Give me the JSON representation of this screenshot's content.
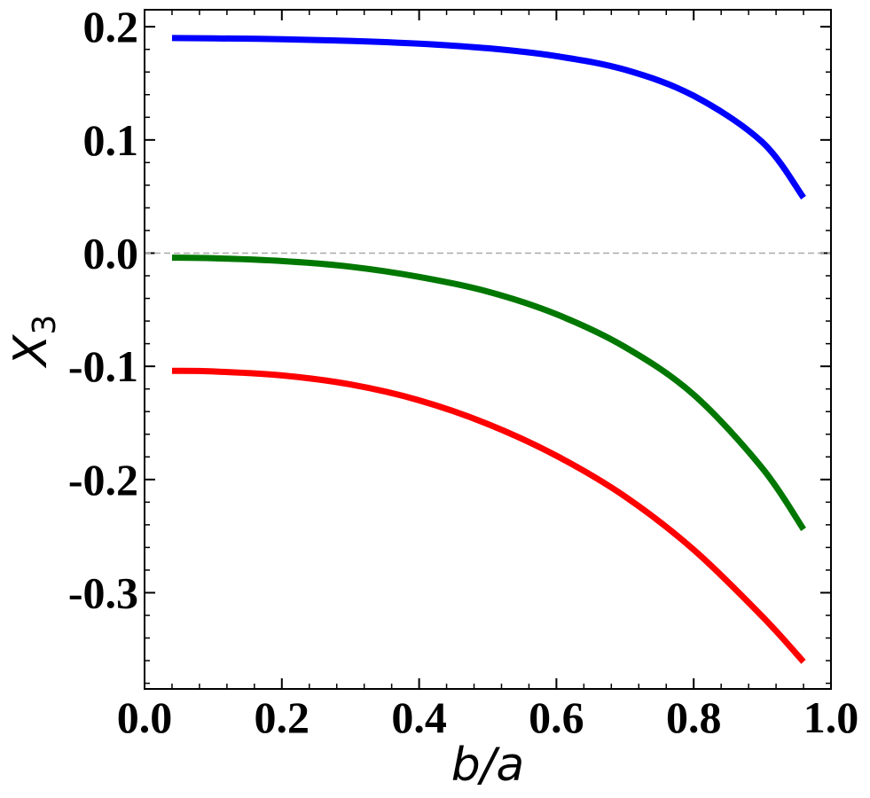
{
  "chart_data": {
    "type": "line",
    "xlabel": "b/a",
    "ylabel": "X",
    "ylabel_subscript": "3",
    "xlim": [
      0.0,
      1.0
    ],
    "ylim": [
      -0.385,
      0.215
    ],
    "xticks": [
      0.0,
      0.2,
      0.4,
      0.6,
      0.8,
      1.0
    ],
    "xtick_labels": [
      "0.0",
      "0.2",
      "0.4",
      "0.6",
      "0.8",
      "1.0"
    ],
    "yticks": [
      0.2,
      0.1,
      0.0,
      -0.1,
      -0.2,
      -0.3
    ],
    "ytick_labels": [
      "0.2",
      "0.1",
      "0.0",
      "-0.1",
      "-0.2",
      "-0.3"
    ],
    "reference_line": {
      "y": 0.0,
      "style": "dashed",
      "color": "#aaaaaa"
    },
    "grid": false,
    "legend": "none",
    "x": [
      0.04,
      0.1,
      0.2,
      0.3,
      0.4,
      0.5,
      0.6,
      0.7,
      0.8,
      0.9,
      0.96
    ],
    "series": [
      {
        "color": "#0000ff",
        "values": [
          0.19,
          0.1897,
          0.189,
          0.1875,
          0.185,
          0.181,
          0.174,
          0.162,
          0.139,
          0.098,
          0.049
        ]
      },
      {
        "color": "#007700",
        "values": [
          -0.004,
          -0.0045,
          -0.007,
          -0.012,
          -0.021,
          -0.034,
          -0.054,
          -0.083,
          -0.125,
          -0.19,
          -0.244
        ]
      },
      {
        "color": "#ff0000",
        "values": [
          -0.104,
          -0.1045,
          -0.108,
          -0.116,
          -0.13,
          -0.151,
          -0.179,
          -0.215,
          -0.262,
          -0.321,
          -0.361
        ]
      }
    ]
  }
}
